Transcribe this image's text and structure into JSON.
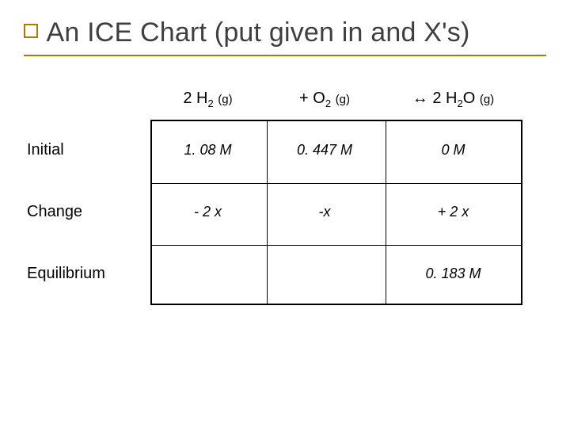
{
  "style": {
    "accent_color": "#b87500",
    "title_color": "#3f3f3f",
    "underline_color": "#b87500",
    "text_color": "#000000",
    "background_color": "#ffffff",
    "title_fontsize": 34,
    "header_fontsize": 20,
    "label_fontsize": 20,
    "cell_fontsize": 18,
    "cell_font_style": "italic",
    "table_border_color": "#000000",
    "table_border_width": 2,
    "outer_square_size": 14
  },
  "title": "An ICE Chart (put given in and X's)",
  "columns": {
    "c1": {
      "species": "2 H",
      "sub1": "2",
      "phase": "(g)",
      "prefix": ""
    },
    "c2": {
      "species": "+ O",
      "sub1": "2",
      "phase": "(g)",
      "prefix": ""
    },
    "c3": {
      "species": "2 H",
      "sub1": "2",
      "species2": "O",
      "phase": "(g)",
      "prefix": "↔ "
    }
  },
  "rows": {
    "initial": {
      "label": "Initial"
    },
    "change": {
      "label": "Change"
    },
    "equilibrium": {
      "label": "Equilibrium"
    }
  },
  "cells": {
    "initial": {
      "c1": "1. 08 M",
      "c2": "0. 447 M",
      "c3": "0 M"
    },
    "change": {
      "c1": "- 2 x",
      "c2": "-x",
      "c3": "+ 2 x"
    },
    "equilibrium": {
      "c1": "",
      "c2": "",
      "c3": "0. 183 M"
    }
  }
}
